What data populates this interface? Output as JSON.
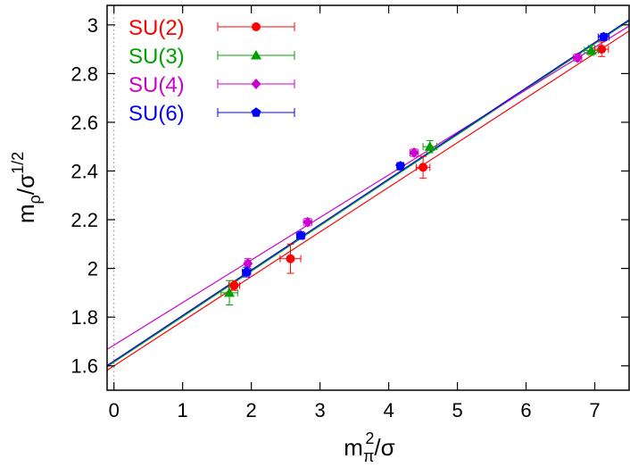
{
  "chart_data": {
    "type": "scatter",
    "title": "",
    "xlabel": {
      "base": "m",
      "sub": "π",
      "sup": "2",
      "tail": "/σ"
    },
    "ylabel": {
      "base": "m",
      "sub": "ρ",
      "mid": "/σ",
      "sup": "1/2"
    },
    "xlim": [
      -0.1,
      7.5
    ],
    "ylim": [
      1.5,
      3.08
    ],
    "x_ticks": [
      0,
      1,
      2,
      3,
      4,
      5,
      6,
      7
    ],
    "y_ticks": [
      1.6,
      1.8,
      2.0,
      2.2,
      2.4,
      2.6,
      2.8,
      3.0
    ],
    "y_tick_labels": [
      "1.6",
      "1.8",
      "2",
      "2.2",
      "2.4",
      "2.6",
      "2.8",
      "3"
    ],
    "x_tick_labels": [
      "0",
      "1",
      "2",
      "3",
      "4",
      "5",
      "6",
      "7"
    ],
    "vertical_reference_line_x": 0,
    "legend_position": "top-left",
    "series": [
      {
        "name": "SU(2)",
        "color": "#ff0000",
        "marker": "circle",
        "points": [
          {
            "x": 1.75,
            "y": 1.93,
            "xerr": 0.08,
            "yerr": 0.02
          },
          {
            "x": 2.57,
            "y": 2.04,
            "xerr": 0.15,
            "yerr": 0.06
          },
          {
            "x": 4.5,
            "y": 2.415,
            "xerr": 0.1,
            "yerr": 0.045
          },
          {
            "x": 7.1,
            "y": 2.9,
            "xerr": 0.1,
            "yerr": 0.03
          }
        ],
        "fit": {
          "intercept": 1.6,
          "slope": 0.1833
        }
      },
      {
        "name": "SU(3)",
        "color": "#00a000",
        "marker": "triangle",
        "points": [
          {
            "x": 1.68,
            "y": 1.9,
            "xerr": 0.12,
            "yerr": 0.05
          },
          {
            "x": 4.6,
            "y": 2.5,
            "xerr": 0.1,
            "yerr": 0.025
          },
          {
            "x": 6.95,
            "y": 2.895,
            "xerr": 0.1,
            "yerr": 0.02
          }
        ],
        "fit": {
          "intercept": 1.615,
          "slope": 0.1868
        }
      },
      {
        "name": "SU(4)",
        "color": "#cc00cc",
        "marker": "diamond",
        "points": [
          {
            "x": 1.95,
            "y": 2.02,
            "xerr": 0.04,
            "yerr": 0.02
          },
          {
            "x": 2.82,
            "y": 2.19,
            "xerr": 0.06,
            "yerr": 0.015
          },
          {
            "x": 4.37,
            "y": 2.475,
            "xerr": 0.06,
            "yerr": 0.015
          },
          {
            "x": 6.75,
            "y": 2.865,
            "xerr": 0.06,
            "yerr": 0.015
          }
        ],
        "fit": {
          "intercept": 1.685,
          "slope": 0.1747
        }
      },
      {
        "name": "SU(6)",
        "color": "#0000ff",
        "marker": "pentagon",
        "points": [
          {
            "x": 1.93,
            "y": 1.985,
            "xerr": 0.06,
            "yerr": 0.02
          },
          {
            "x": 2.72,
            "y": 2.135,
            "xerr": 0.06,
            "yerr": 0.015
          },
          {
            "x": 4.17,
            "y": 2.42,
            "xerr": 0.05,
            "yerr": 0.015
          },
          {
            "x": 7.13,
            "y": 2.95,
            "xerr": 0.08,
            "yerr": 0.015
          }
        ],
        "fit": {
          "intercept": 1.62,
          "slope": 0.1868
        }
      }
    ]
  }
}
